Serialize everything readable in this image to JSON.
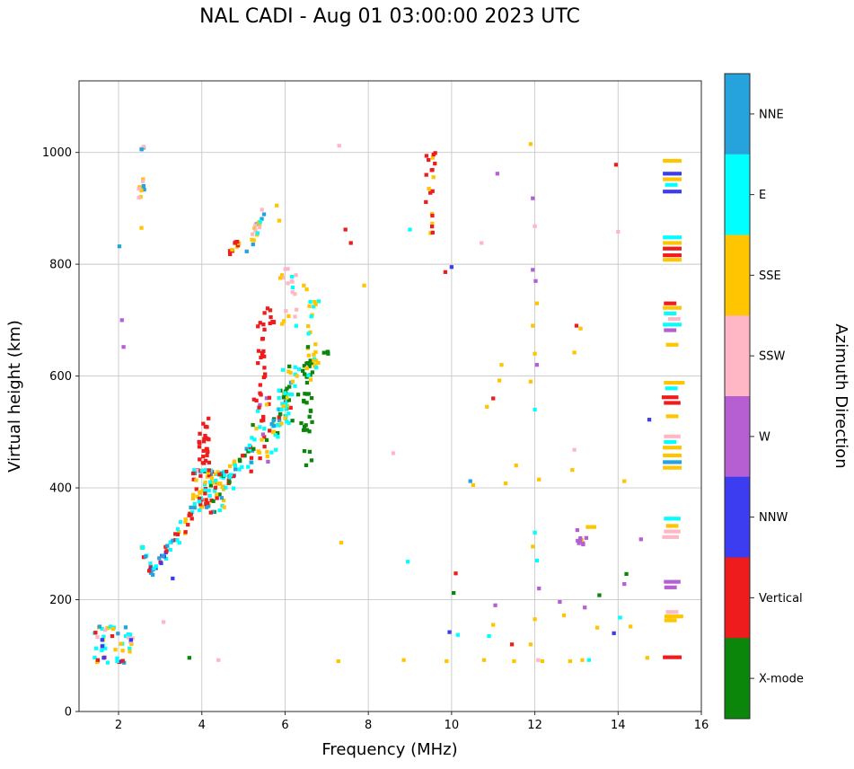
{
  "chart_data": {
    "type": "scatter",
    "title": "NAL CADI - Aug 01 03:00:00 2023 UTC",
    "xlabel": "Frequency (MHz)",
    "ylabel": "Virtual height (km)",
    "colorbar_label": "Azimuth Direction",
    "xlim": [
      1.05,
      16
    ],
    "ylim": [
      0,
      1128
    ],
    "xticks": [
      2,
      4,
      6,
      8,
      10,
      12,
      14,
      16
    ],
    "yticks": [
      0,
      200,
      400,
      600,
      800,
      1000
    ],
    "grid": true,
    "grid_color": "#c8c8c8",
    "directions": [
      {
        "label": "NNE",
        "color": "#26a3dc"
      },
      {
        "label": "E",
        "color": "#00ffff"
      },
      {
        "label": "SSE",
        "color": "#fec500"
      },
      {
        "label": "SSW",
        "color": "#ffb7c5"
      },
      {
        "label": "W",
        "color": "#b55fd3"
      },
      {
        "label": "NNW",
        "color": "#3c3cf0"
      },
      {
        "label": "Vertical",
        "color": "#ee1c1c"
      },
      {
        "label": "X-mode",
        "color": "#0b860b"
      }
    ],
    "clusters": [
      {
        "mode": "uniform",
        "x": [
          1.42,
          2.35
        ],
        "y": [
          86,
          152
        ],
        "n": 48,
        "dirs": [
          1,
          1,
          1,
          3,
          3,
          2,
          2,
          6,
          0,
          5
        ]
      },
      {
        "mode": "line",
        "x": [
          2.55,
          2.78
        ],
        "y": [
          296,
          250
        ],
        "n": 12,
        "jx": 0.05,
        "jy": 8,
        "dirs": [
          6,
          0,
          5,
          1,
          2
        ]
      },
      {
        "mode": "line",
        "x": [
          2.78,
          3.35
        ],
        "y": [
          250,
          308
        ],
        "n": 22,
        "jx": 0.06,
        "jy": 9,
        "dirs": [
          0,
          0,
          6,
          1,
          5,
          2
        ]
      },
      {
        "mode": "line",
        "x": [
          3.35,
          3.85
        ],
        "y": [
          308,
          362
        ],
        "n": 20,
        "jx": 0.07,
        "jy": 13,
        "dirs": [
          6,
          1,
          0,
          2,
          6
        ]
      },
      {
        "mode": "uniform",
        "x": [
          3.78,
          4.55
        ],
        "y": [
          355,
          432
        ],
        "n": 90,
        "dirs": [
          6,
          6,
          6,
          1,
          1,
          1,
          2,
          2,
          0,
          3,
          7
        ]
      },
      {
        "mode": "uniform",
        "x": [
          3.93,
          4.18
        ],
        "y": [
          430,
          525
        ],
        "n": 26,
        "dirs": [
          6
        ]
      },
      {
        "mode": "line",
        "x": [
          4.55,
          5.25
        ],
        "y": [
          405,
          470
        ],
        "n": 38,
        "jx": 0.09,
        "jy": 22,
        "dirs": [
          1,
          6,
          2,
          7,
          0,
          1
        ]
      },
      {
        "mode": "uniform",
        "x": [
          5.18,
          5.65
        ],
        "y": [
          428,
          568
        ],
        "n": 30,
        "dirs": [
          6,
          1,
          2,
          4,
          7,
          6
        ]
      },
      {
        "mode": "uniform",
        "x": [
          5.33,
          5.52
        ],
        "y": [
          555,
          725
        ],
        "n": 20,
        "dirs": [
          6
        ]
      },
      {
        "mode": "line",
        "x": [
          5.6,
          6.18
        ],
        "y": [
          468,
          592
        ],
        "n": 46,
        "jx": 0.1,
        "jy": 26,
        "dirs": [
          1,
          1,
          7,
          2,
          6,
          0,
          7
        ]
      },
      {
        "mode": "uniform",
        "x": [
          5.85,
          6.4
        ],
        "y": [
          515,
          618
        ],
        "n": 28,
        "dirs": [
          1,
          1,
          1,
          2,
          7
        ]
      },
      {
        "mode": "uniform",
        "x": [
          6.42,
          6.68
        ],
        "y": [
          438,
          628
        ],
        "n": 32,
        "dirs": [
          7
        ]
      },
      {
        "mode": "uniform",
        "x": [
          6.52,
          6.82
        ],
        "y": [
          592,
          735
        ],
        "n": 26,
        "dirs": [
          2,
          2,
          2,
          1
        ]
      },
      {
        "mode": "uniform",
        "x": [
          5.88,
          6.28
        ],
        "y": [
          688,
          792
        ],
        "n": 20,
        "dirs": [
          3,
          3,
          2,
          1
        ]
      },
      {
        "mode": "uniform",
        "x": [
          5.5,
          5.78
        ],
        "y": [
          688,
          722
        ],
        "n": 8,
        "dirs": [
          6
        ]
      },
      {
        "mode": "line",
        "x": [
          5.08,
          5.55
        ],
        "y": [
          822,
          902
        ],
        "n": 18,
        "jx": 0.05,
        "jy": 9,
        "dirs": [
          2,
          0,
          1,
          3,
          2
        ]
      },
      {
        "mode": "uniform",
        "x": [
          4.62,
          4.92
        ],
        "y": [
          818,
          842
        ],
        "n": 10,
        "dirs": [
          6,
          6,
          6,
          2
        ]
      },
      {
        "mode": "uniform",
        "x": [
          2.48,
          2.62
        ],
        "y": [
          888,
          1018
        ],
        "n": 13,
        "dirs": [
          3,
          3,
          2,
          0
        ]
      },
      {
        "mode": "uniform",
        "x": [
          9.38,
          9.62
        ],
        "y": [
          852,
          1015
        ],
        "n": 20,
        "dirs": [
          6,
          6,
          6,
          2
        ]
      },
      {
        "mode": "uniform",
        "x": [
          6.9,
          7.12
        ],
        "y": [
          638,
          662
        ],
        "n": 4,
        "dirs": [
          7
        ]
      },
      {
        "mode": "uniform",
        "x": [
          13.02,
          13.3
        ],
        "y": [
          298,
          336
        ],
        "n": 9,
        "dirs": [
          4,
          4,
          4,
          2
        ]
      }
    ],
    "points": [
      [
        2.02,
        832,
        0
      ],
      [
        2.08,
        700,
        4
      ],
      [
        2.12,
        652,
        4
      ],
      [
        1.5,
        92,
        6
      ],
      [
        2.3,
        128,
        5
      ],
      [
        3.08,
        160,
        3
      ],
      [
        3.3,
        238,
        5
      ],
      [
        3.7,
        96,
        7
      ],
      [
        4.4,
        92,
        3
      ],
      [
        7.3,
        1012,
        3
      ],
      [
        7.45,
        862,
        6
      ],
      [
        7.58,
        838,
        6
      ],
      [
        7.9,
        762,
        2
      ],
      [
        7.35,
        302,
        2
      ],
      [
        7.28,
        90,
        2
      ],
      [
        8.6,
        462,
        3
      ],
      [
        8.85,
        92,
        2
      ],
      [
        8.95,
        268,
        1
      ],
      [
        9.0,
        862,
        1
      ],
      [
        9.88,
        90,
        2
      ],
      [
        9.85,
        786,
        6
      ],
      [
        10.0,
        795,
        5
      ],
      [
        10.05,
        212,
        7
      ],
      [
        10.1,
        247,
        6
      ],
      [
        10.15,
        137,
        1
      ],
      [
        9.95,
        142,
        5
      ],
      [
        10.45,
        412,
        0
      ],
      [
        10.52,
        405,
        2
      ],
      [
        10.72,
        838,
        3
      ],
      [
        10.78,
        92,
        2
      ],
      [
        10.9,
        135,
        1
      ],
      [
        11.0,
        155,
        2
      ],
      [
        11.05,
        190,
        4
      ],
      [
        11.1,
        962,
        4
      ],
      [
        11.15,
        592,
        2
      ],
      [
        11.2,
        620,
        2
      ],
      [
        10.85,
        545,
        2
      ],
      [
        11.0,
        560,
        6
      ],
      [
        11.3,
        408,
        2
      ],
      [
        11.55,
        440,
        2
      ],
      [
        11.45,
        120,
        6
      ],
      [
        11.5,
        90,
        2
      ],
      [
        11.9,
        1015,
        2
      ],
      [
        11.95,
        918,
        4
      ],
      [
        12.0,
        868,
        3
      ],
      [
        11.95,
        790,
        4
      ],
      [
        12.02,
        770,
        4
      ],
      [
        12.05,
        730,
        2
      ],
      [
        11.95,
        690,
        2
      ],
      [
        12.0,
        640,
        2
      ],
      [
        12.05,
        620,
        4
      ],
      [
        11.9,
        590,
        2
      ],
      [
        12.0,
        540,
        1
      ],
      [
        12.1,
        415,
        2
      ],
      [
        12.0,
        320,
        1
      ],
      [
        11.95,
        295,
        2
      ],
      [
        12.05,
        270,
        1
      ],
      [
        12.1,
        220,
        4
      ],
      [
        12.0,
        165,
        2
      ],
      [
        11.9,
        120,
        2
      ],
      [
        12.08,
        92,
        3
      ],
      [
        12.18,
        90,
        2
      ],
      [
        12.6,
        196,
        4
      ],
      [
        12.7,
        172,
        2
      ],
      [
        12.85,
        90,
        2
      ],
      [
        12.9,
        432,
        2
      ],
      [
        12.95,
        468,
        3
      ],
      [
        12.95,
        642,
        2
      ],
      [
        13.0,
        690,
        6
      ],
      [
        13.1,
        685,
        2
      ],
      [
        13.2,
        186,
        4
      ],
      [
        13.3,
        92,
        1
      ],
      [
        13.14,
        92,
        2
      ],
      [
        13.55,
        208,
        7
      ],
      [
        13.5,
        150,
        2
      ],
      [
        13.95,
        978,
        6
      ],
      [
        14.0,
        858,
        3
      ],
      [
        14.15,
        412,
        2
      ],
      [
        14.2,
        246,
        7
      ],
      [
        14.15,
        228,
        4
      ],
      [
        14.3,
        152,
        2
      ],
      [
        14.05,
        168,
        1
      ],
      [
        13.9,
        140,
        5
      ],
      [
        14.7,
        96,
        2
      ],
      [
        14.75,
        522,
        5
      ],
      [
        14.55,
        308,
        4
      ],
      [
        6.55,
        652,
        7
      ],
      [
        6.45,
        762,
        2
      ],
      [
        6.52,
        755,
        2
      ],
      [
        5.8,
        905,
        2
      ],
      [
        5.86,
        878,
        2
      ],
      [
        2.55,
        865,
        2
      ],
      [
        2.6,
        940,
        0
      ]
    ],
    "dashes": [
      [
        15.3,
        985,
        2,
        0.45
      ],
      [
        15.3,
        962,
        5,
        0.45
      ],
      [
        15.3,
        952,
        2,
        0.45
      ],
      [
        15.28,
        942,
        1,
        0.3
      ],
      [
        15.3,
        930,
        5,
        0.45
      ],
      [
        15.3,
        848,
        1,
        0.45
      ],
      [
        15.3,
        838,
        2,
        0.45
      ],
      [
        15.3,
        828,
        6,
        0.45
      ],
      [
        15.3,
        816,
        6,
        0.45
      ],
      [
        15.3,
        808,
        2,
        0.45
      ],
      [
        15.25,
        730,
        6,
        0.3
      ],
      [
        15.3,
        722,
        2,
        0.45
      ],
      [
        15.25,
        712,
        1,
        0.3
      ],
      [
        15.35,
        702,
        3,
        0.3
      ],
      [
        15.3,
        692,
        1,
        0.45
      ],
      [
        15.25,
        682,
        4,
        0.3
      ],
      [
        15.3,
        656,
        2,
        0.3
      ],
      [
        15.35,
        588,
        2,
        0.5
      ],
      [
        15.28,
        578,
        1,
        0.3
      ],
      [
        15.25,
        562,
        6,
        0.4
      ],
      [
        15.3,
        552,
        6,
        0.4
      ],
      [
        15.3,
        528,
        2,
        0.3
      ],
      [
        15.3,
        492,
        3,
        0.4
      ],
      [
        15.25,
        482,
        1,
        0.3
      ],
      [
        15.3,
        472,
        2,
        0.45
      ],
      [
        15.3,
        458,
        2,
        0.45
      ],
      [
        15.3,
        446,
        0,
        0.45
      ],
      [
        15.3,
        436,
        2,
        0.45
      ],
      [
        15.3,
        345,
        1,
        0.4
      ],
      [
        15.3,
        332,
        2,
        0.3
      ],
      [
        15.3,
        322,
        3,
        0.4
      ],
      [
        15.26,
        312,
        3,
        0.4
      ],
      [
        15.3,
        232,
        4,
        0.4
      ],
      [
        15.26,
        222,
        4,
        0.3
      ],
      [
        15.3,
        178,
        3,
        0.3
      ],
      [
        15.34,
        170,
        2,
        0.45
      ],
      [
        15.26,
        163,
        2,
        0.3
      ],
      [
        15.3,
        97,
        6,
        0.45
      ],
      [
        13.35,
        330,
        2,
        0.25
      ]
    ]
  }
}
